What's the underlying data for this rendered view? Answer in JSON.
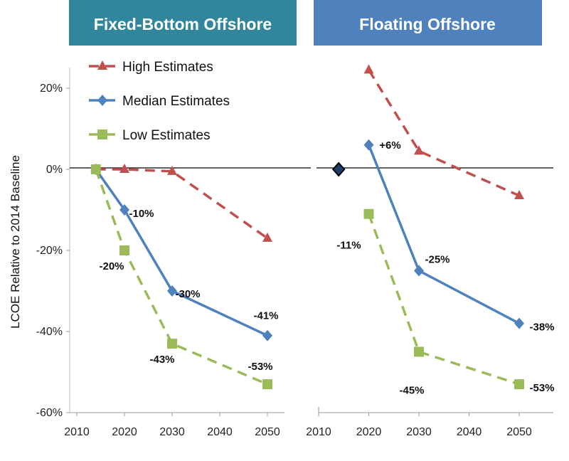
{
  "colors": {
    "high": "#c0504d",
    "median": "#4f81bd",
    "low": "#9bbb59",
    "header_fixed": "#31869b",
    "header_floating": "#4f81bd"
  },
  "legend": [
    "High Estimates",
    "Median Estimates",
    "Low Estimates"
  ],
  "chart_data": [
    {
      "type": "line",
      "title": "Fixed-Bottom Offshore",
      "ylabel": "LCOE Relative to 2014 Baseline",
      "ylim": [
        -60,
        20
      ],
      "xlim": [
        2010,
        2055
      ],
      "yticks": [
        "20%",
        "0%",
        "-20%",
        "-40%",
        "-60%"
      ],
      "xticks": [
        "2010",
        "2020",
        "2030",
        "2040",
        "2050"
      ],
      "series": [
        {
          "name": "High Estimates",
          "x": [
            2014,
            2020,
            2030,
            2050
          ],
          "values": [
            0,
            0,
            -0.5,
            -17
          ],
          "labels": [
            "",
            "",
            "",
            ""
          ]
        },
        {
          "name": "Median Estimates",
          "x": [
            2014,
            2020,
            2030,
            2050
          ],
          "values": [
            0,
            -10,
            -30,
            -41
          ],
          "labels": [
            "",
            "-10%",
            "-30%",
            "-41%"
          ]
        },
        {
          "name": "Low Estimates",
          "x": [
            2014,
            2020,
            2030,
            2050
          ],
          "values": [
            0,
            -20,
            -43,
            -53
          ],
          "labels": [
            "",
            "-20%",
            "-43%",
            "-53%"
          ]
        }
      ]
    },
    {
      "type": "line",
      "title": "Floating Offshore",
      "ylim": [
        -60,
        20
      ],
      "xlim": [
        2010,
        2055
      ],
      "xticks": [
        "2010",
        "2020",
        "2030",
        "2040",
        "2050"
      ],
      "baseline_point": {
        "x": 2014,
        "value": 0
      },
      "series": [
        {
          "name": "High Estimates",
          "x": [
            2020,
            2030,
            2050
          ],
          "values": [
            24.5,
            4.5,
            -6.5
          ],
          "labels": [
            "",
            "",
            ""
          ]
        },
        {
          "name": "Median Estimates",
          "x": [
            2020,
            2030,
            2050
          ],
          "values": [
            6,
            -25,
            -38
          ],
          "labels": [
            "+6%",
            "-25%",
            "-38%"
          ]
        },
        {
          "name": "Low Estimates",
          "x": [
            2020,
            2030,
            2050
          ],
          "values": [
            -11,
            -45,
            -53
          ],
          "labels": [
            "-11%",
            "-45%",
            "-53%"
          ]
        }
      ]
    }
  ]
}
